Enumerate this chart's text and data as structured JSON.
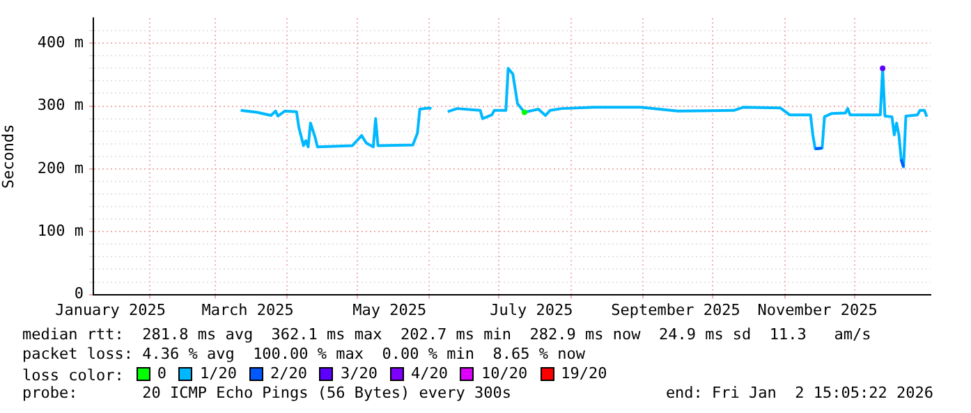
{
  "chart_data": {
    "type": "line",
    "ylabel": "Seconds",
    "xlim": [
      "2025-01-07T15:05",
      "2026-01-02T15:05"
    ],
    "xticks": [
      {
        "value": "2025-01-15",
        "label": "January 2025"
      },
      {
        "value": "2025-02-01",
        "label": null
      },
      {
        "value": "2025-03-01",
        "label": null
      },
      {
        "value": "2025-03-15",
        "label": "March 2025"
      },
      {
        "value": "2025-04-01",
        "label": null
      },
      {
        "value": "2025-05-01",
        "label": null
      },
      {
        "value": "2025-05-15",
        "label": "May 2025"
      },
      {
        "value": "2025-06-01",
        "label": null
      },
      {
        "value": "2025-07-01",
        "label": null
      },
      {
        "value": "2025-07-15",
        "label": "July 2025"
      },
      {
        "value": "2025-08-01",
        "label": null
      },
      {
        "value": "2025-09-01",
        "label": null
      },
      {
        "value": "2025-09-15",
        "label": "September 2025"
      },
      {
        "value": "2025-10-01",
        "label": null
      },
      {
        "value": "2025-11-01",
        "label": null
      },
      {
        "value": "2025-11-15",
        "label": "November 2025"
      },
      {
        "value": "2025-12-01",
        "label": null
      }
    ],
    "ylim": [
      0,
      440
    ],
    "yticks": [
      0,
      {
        "value": 20,
        "label": null
      },
      {
        "value": 40,
        "label": null
      },
      {
        "value": 60,
        "label": null
      },
      {
        "value": 80,
        "label": null
      },
      {
        "value": 100,
        "label": "100 m"
      },
      {
        "value": 120,
        "label": null
      },
      {
        "value": 140,
        "label": null
      },
      {
        "value": 160,
        "label": null
      },
      {
        "value": 180,
        "label": null
      },
      {
        "value": 200,
        "label": "200 m"
      },
      {
        "value": 220,
        "label": null
      },
      {
        "value": 240,
        "label": null
      },
      {
        "value": 260,
        "label": null
      },
      {
        "value": 280,
        "label": null
      },
      {
        "value": 300,
        "label": "300 m"
      },
      {
        "value": 320,
        "label": null
      },
      {
        "value": 340,
        "label": null
      },
      {
        "value": 360,
        "label": null
      },
      {
        "value": 380,
        "label": null
      },
      {
        "value": 400,
        "label": "400 m"
      },
      {
        "value": 420,
        "label": null
      }
    ],
    "grid": true,
    "legend": "bottom",
    "series": [
      {
        "name": "0",
        "color": "#00ff00",
        "marker": "circle",
        "x": [
          "2025-07-12"
        ],
        "values": [
          290
        ]
      },
      {
        "name": "1/20",
        "color": "#00b8ff",
        "x": [
          "2025-03-12",
          "2025-03-19",
          "2025-03-25",
          "2025-03-27",
          "2025-03-28",
          "2025-03-31",
          "2025-04-05",
          "2025-04-06",
          "2025-04-08",
          "2025-04-09",
          "2025-04-10",
          "2025-04-11",
          "2025-04-13",
          "2025-04-14",
          "2025-04-29",
          "2025-05-03",
          "2025-05-05",
          "2025-05-08",
          "2025-05-09",
          "2025-05-10",
          "2025-05-25",
          "2025-05-27",
          "2025-05-28",
          "2025-06-01",
          "2025-06-02",
          "2025-06-05",
          "2025-06-09",
          "2025-06-13",
          "2025-06-23",
          "2025-06-24",
          "2025-06-28",
          "2025-06-29",
          "2025-07-04",
          "2025-07-05",
          "2025-07-07",
          "2025-07-09",
          "2025-07-12",
          "2025-07-18",
          "2025-07-21",
          "2025-07-23",
          "2025-07-28",
          "2025-08-11",
          "2025-08-31",
          "2025-09-16",
          "2025-10-10",
          "2025-10-14",
          "2025-10-30",
          "2025-11-03",
          "2025-11-12",
          "2025-11-13",
          "2025-11-14",
          "2025-11-17",
          "2025-11-18",
          "2025-11-21",
          "2025-11-27",
          "2025-11-28",
          "2025-11-29",
          "2025-12-12",
          "2025-12-13",
          "2025-12-14",
          "2025-12-17",
          "2025-12-18",
          "2025-12-19",
          "2025-12-20",
          "2025-12-21",
          "2025-12-22",
          "2025-12-23",
          "2025-12-28",
          "2025-12-29",
          "2025-12-31",
          "2026-01-01"
        ],
        "values": [
          293,
          290,
          285,
          292,
          284,
          292,
          291,
          266,
          237,
          245,
          235,
          273,
          250,
          235,
          237,
          253,
          241,
          235,
          280,
          237,
          238,
          257,
          295,
          297,
          296,
          null,
          291,
          296,
          293,
          280,
          286,
          293,
          293,
          360,
          351,
          304,
          290,
          295,
          285,
          293,
          296,
          298,
          298,
          292,
          293,
          298,
          297,
          286,
          286,
          254,
          232,
          233,
          283,
          288,
          289,
          296,
          286,
          286,
          360,
          284,
          283,
          254,
          273,
          254,
          215,
          203,
          284,
          286,
          293,
          293,
          283
        ]
      },
      {
        "name": "2/20",
        "color": "#0059ff",
        "x": [
          "2025-11-14",
          "2025-11-17",
          "2025-11-18",
          "2025-12-21",
          "2025-12-22"
        ],
        "values": [
          232,
          233,
          null,
          215,
          203
        ]
      },
      {
        "name": "3/20",
        "color": "#5e00ff",
        "marker": "circle",
        "x": [
          "2025-12-13"
        ],
        "values": [
          360
        ]
      },
      {
        "name": "4/20",
        "color": "#7e00ff"
      },
      {
        "name": "10/20",
        "color": "#dd00ff"
      },
      {
        "name": "19/20",
        "color": "#ff0000"
      }
    ],
    "annotations": [
      "median rtt:  281.8 ms avg  362.1 ms max  202.7 ms min  282.9 ms now  24.9 ms sd  11.3   am/s",
      "packet loss: 4.36 % avg  100.00 % max  0.00 % min  8.65 % now",
      "loss color:",
      "probe:       20 ICMP Echo Pings (56 Bytes) every 300s",
      "end: Fri Jan  2 15:05:22 2026"
    ]
  }
}
